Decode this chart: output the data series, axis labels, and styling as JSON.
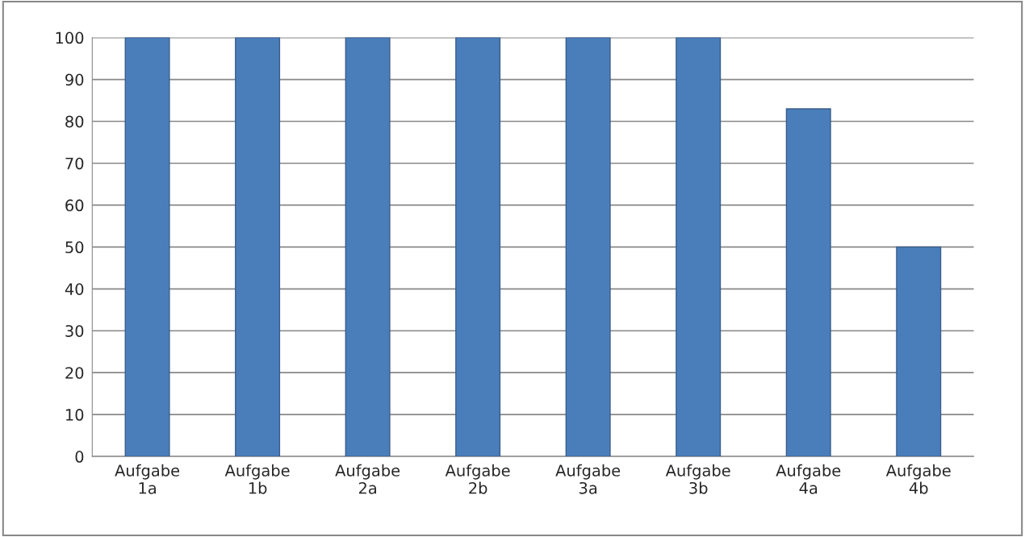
{
  "chart_data": {
    "type": "bar",
    "categories": [
      "Aufgabe\n1a",
      "Aufgabe\n1b",
      "Aufgabe\n2a",
      "Aufgabe\n2b",
      "Aufgabe\n3a",
      "Aufgabe\n3b",
      "Aufgabe\n4a",
      "Aufgabe\n4b"
    ],
    "values": [
      100,
      100,
      100,
      100,
      100,
      100,
      83,
      50
    ],
    "color": "#4a7ebb",
    "ylim": [
      0,
      100
    ],
    "yticks": [
      0,
      10,
      20,
      30,
      40,
      50,
      60,
      70,
      80,
      90,
      100
    ],
    "grid": "y"
  }
}
